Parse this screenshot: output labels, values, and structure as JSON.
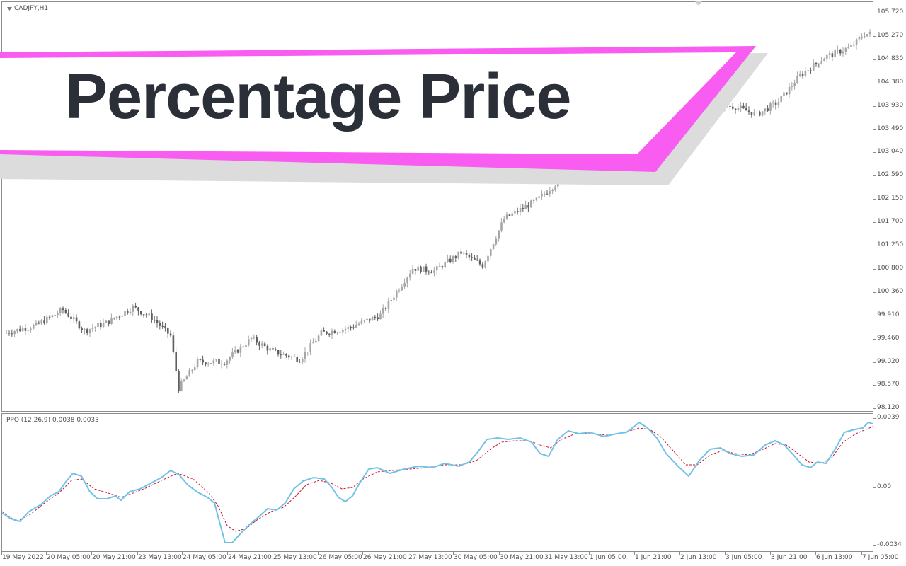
{
  "chart": {
    "symbol": "CADJPY,H1",
    "menu_icon": "triangle-down-icon",
    "indicator_label": "PPO (12,26,9) 0.0038 0.0033"
  },
  "banner": {
    "text": "Percentage Price",
    "accent_color": "#f95cf0",
    "shadow_color": "#dcdcdc",
    "text_color": "#2b2f38"
  },
  "colors": {
    "candle": "#a6a6a6",
    "candle_dark": "#606060",
    "ppo_line": "#71c2e6",
    "signal_line": "#c8102e"
  },
  "price_axis": [
    "105.720",
    "105.270",
    "104.830",
    "104.380",
    "103.930",
    "103.490",
    "103.040",
    "102.590",
    "102.150",
    "101.700",
    "101.250",
    "100.800",
    "100.360",
    "99.910",
    "99.460",
    "99.020",
    "98.570",
    "98.120"
  ],
  "ppo_axis": [
    "0.0039",
    "0.00",
    "-0.0034"
  ],
  "time_axis": [
    "19 May 2022",
    "20 May 05:00",
    "20 May 21:00",
    "23 May 13:00",
    "24 May 05:00",
    "24 May 21:00",
    "25 May 13:00",
    "26 May 05:00",
    "26 May 21:00",
    "27 May 13:00",
    "30 May 05:00",
    "30 May 21:00",
    "31 May 13:00",
    "1 Jun 05:00",
    "1 Jun 21:00",
    "2 Jun 13:00",
    "3 Jun 05:00",
    "3 Jun 21:00",
    "6 Jun 13:00",
    "7 Jun 05:00"
  ],
  "chart_data": {
    "type": "candlestick",
    "price_range": [
      98.12,
      105.72
    ],
    "price_series_approx": [
      [
        0,
        99.55
      ],
      [
        12,
        99.7
      ],
      [
        22,
        100.0
      ],
      [
        30,
        99.6
      ],
      [
        38,
        99.75
      ],
      [
        48,
        100.05
      ],
      [
        55,
        99.85
      ],
      [
        62,
        99.5
      ],
      [
        65,
        98.5
      ],
      [
        72,
        99.0
      ],
      [
        82,
        99.0
      ],
      [
        92,
        99.45
      ],
      [
        100,
        99.2
      ],
      [
        110,
        99.05
      ],
      [
        118,
        99.55
      ],
      [
        128,
        99.65
      ],
      [
        140,
        99.9
      ],
      [
        152,
        100.8
      ],
      [
        160,
        100.75
      ],
      [
        170,
        101.1
      ],
      [
        178,
        100.85
      ],
      [
        186,
        101.75
      ],
      [
        198,
        102.1
      ],
      [
        208,
        102.55
      ],
      [
        215,
        102.85
      ],
      [
        222,
        102.6
      ],
      [
        230,
        102.6
      ],
      [
        238,
        103.3
      ],
      [
        248,
        103.35
      ],
      [
        258,
        103.55
      ],
      [
        264,
        103.95
      ],
      [
        272,
        103.9
      ],
      [
        280,
        103.75
      ],
      [
        288,
        104.0
      ],
      [
        296,
        104.5
      ],
      [
        305,
        104.85
      ],
      [
        315,
        105.05
      ],
      [
        320,
        105.3
      ]
    ],
    "ppo": {
      "current": 0.0038,
      "signal_current": 0.0033,
      "range": [
        -0.0034,
        0.0039
      ]
    }
  }
}
